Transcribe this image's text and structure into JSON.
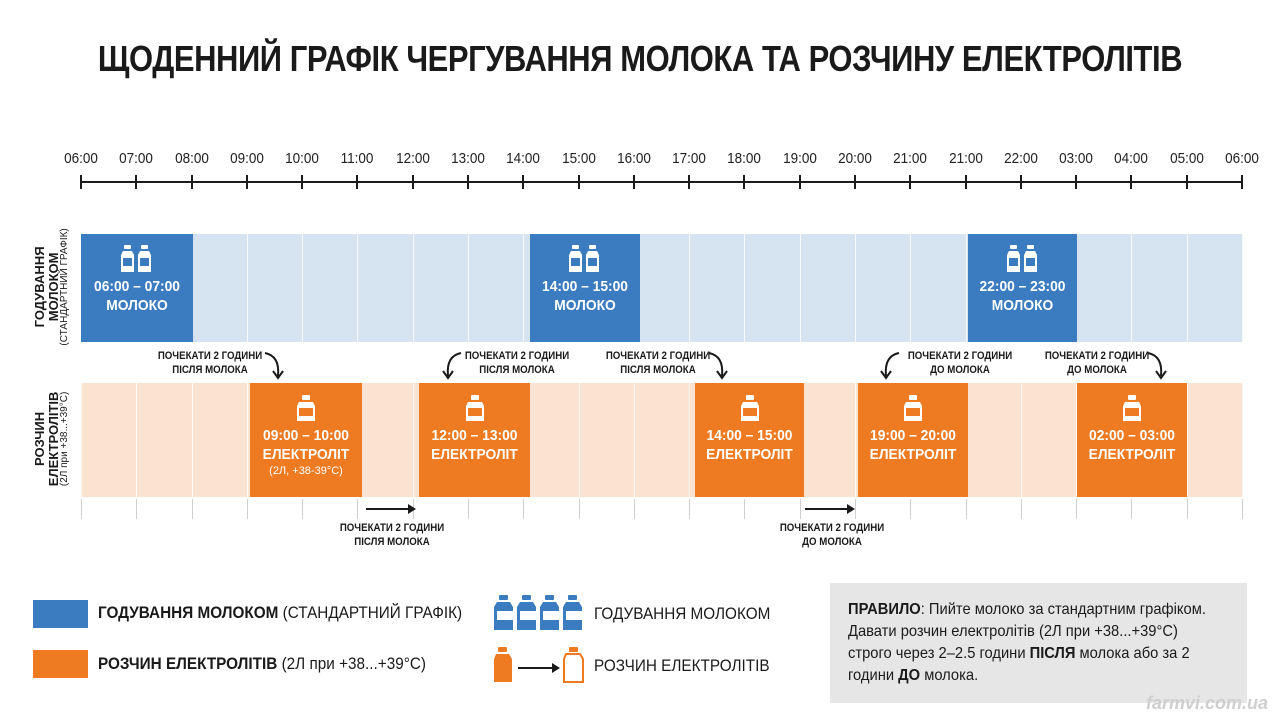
{
  "title": "ЩОДЕННИЙ ГРАФІК ЧЕРГУВАННЯ МОЛОКА ТА РОЗЧИНУ ЕЛЕКТРОЛІТІВ",
  "colors": {
    "milk": "#3a7cbf",
    "milk_band": "#d6e4f1",
    "electrolyte": "#ee7a22",
    "electrolyte_band": "#fbe3d1",
    "rule_bg": "#e6e6e6"
  },
  "timeline": {
    "ticks": [
      "06:00",
      "07:00",
      "08:00",
      "09:00",
      "10:00",
      "11:00",
      "12:00",
      "13:00",
      "14:00",
      "15:00",
      "16:00",
      "17:00",
      "18:00",
      "19:00",
      "20:00",
      "21:00",
      "21:00",
      "22:00",
      "03:00",
      "04:00",
      "05:00",
      "06:00"
    ]
  },
  "rows": {
    "milk": {
      "label": "ГОДУВАННЯ МОЛОКОМ",
      "sublabel": "(СТАНДАРТНИЙ ГРАФІК)"
    },
    "electrolyte": {
      "label": "РОЗЧИН ЕЛЕКТРОЛІТІВ",
      "sublabel": "(2Л при +38...+39°С)"
    }
  },
  "milk_blocks": [
    {
      "time": "06:00 – 07:00",
      "name": "МОЛОКО",
      "icon": "milk-bottles-icon"
    },
    {
      "time": "14:00 – 15:00",
      "name": "МОЛОКО",
      "icon": "milk-bottles-icon"
    },
    {
      "time": "22:00 – 23:00",
      "name": "МОЛОКО",
      "icon": "milk-bottles-icon"
    }
  ],
  "electrolyte_blocks": [
    {
      "time": "09:00 – 10:00",
      "name": "ЕЛЕКТРОЛІТ",
      "note": "(2Л, +38-39°С)",
      "icon": "electrolyte-bottle-icon"
    },
    {
      "time": "12:00 – 13:00",
      "name": "ЕЛЕКТРОЛІТ",
      "icon": "electrolyte-bottle-icon"
    },
    {
      "time": "14:00 – 15:00",
      "name": "ЕЛЕКТРОЛІТ",
      "icon": "electrolyte-bottle-icon"
    },
    {
      "time": "19:00 – 20:00",
      "name": "ЕЛЕКТРОЛІТ",
      "icon": "electrolyte-bottle-icon"
    },
    {
      "time": "02:00 – 03:00",
      "name": "ЕЛЕКТРОЛІТ",
      "icon": "electrolyte-bottle-icon"
    }
  ],
  "notes_top": [
    {
      "line1": "ПОЧЕКАТИ 2 ГОДИНИ",
      "line2": "ПІСЛЯ МОЛОКА"
    },
    {
      "line1": "ПОЧЕКАТИ 2 ГОДИНИ",
      "line2": "ПІСЛЯ МОЛОКА"
    },
    {
      "line1": "ПОЧЕКАТИ 2 ГОДИНИ",
      "line2": "ПІСЛЯ МОЛОКА"
    },
    {
      "line1": "ПОЧЕКАТИ 2 ГОДИНИ",
      "line2": "ДО МОЛОКА"
    },
    {
      "line1": "ПОЧЕКАТИ 2 ГОДИНИ",
      "line2": "ДО МОЛОКА"
    }
  ],
  "notes_bottom": [
    {
      "line1": "ПОЧЕКАТИ 2 ГОДИНИ",
      "line2": "ПІСЛЯ МОЛОКА"
    },
    {
      "line1": "ПОЧЕКАТИ 2 ГОДИНИ",
      "line2": "ДО МОЛОКА"
    }
  ],
  "legend": {
    "milk_bold": "ГОДУВАННЯ МОЛОКОМ",
    "milk_rest": " (СТАНДАРТНИЙ ГРАФІК)",
    "electrolyte_bold": "РОЗЧИН ЕЛЕКТРОЛІТІВ",
    "electrolyte_rest": " (2Л при +38...+39°С)",
    "milk_icon_label": "ГОДУВАННЯ МОЛОКОМ",
    "electrolyte_icon_label": "РОЗЧИН ЕЛЕКТРОЛІТІВ"
  },
  "rule": {
    "lead": "ПРАВИЛО",
    "t1": ": Пийте молоко за стандартним графіком. Давати розчин електролітів (2Л при +38...+39°С) строго через 2–2.5 години ",
    "after": "ПІСЛЯ",
    "t2": " молока або за 2 години ",
    "before": "ДО",
    "t3": " молока."
  },
  "watermark": "farmvi.com.ua"
}
